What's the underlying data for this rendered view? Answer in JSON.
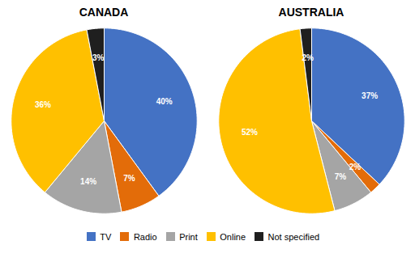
{
  "chart_data": [
    {
      "type": "pie",
      "title": "CANADA",
      "categories": [
        "TV",
        "Radio",
        "Print",
        "Online",
        "Not specified"
      ],
      "values": [
        40,
        7,
        14,
        36,
        3
      ],
      "value_labels": [
        "40%",
        "7%",
        "14%",
        "36%",
        "3%"
      ],
      "colors": [
        "#4472C4",
        "#E36C09",
        "#A5A5A5",
        "#FFC000",
        "#1F1F1F"
      ],
      "data_labels": true,
      "legend": "bottom"
    },
    {
      "type": "pie",
      "title": "AUSTRALIA",
      "categories": [
        "TV",
        "Radio",
        "Print",
        "Online",
        "Not specified"
      ],
      "values": [
        37,
        2,
        7,
        52,
        2
      ],
      "value_labels": [
        "37%",
        "2%",
        "7%",
        "52%",
        "2%"
      ],
      "colors": [
        "#4472C4",
        "#E36C09",
        "#A5A5A5",
        "#FFC000",
        "#1F1F1F"
      ],
      "data_labels": true,
      "legend": "bottom"
    }
  ]
}
